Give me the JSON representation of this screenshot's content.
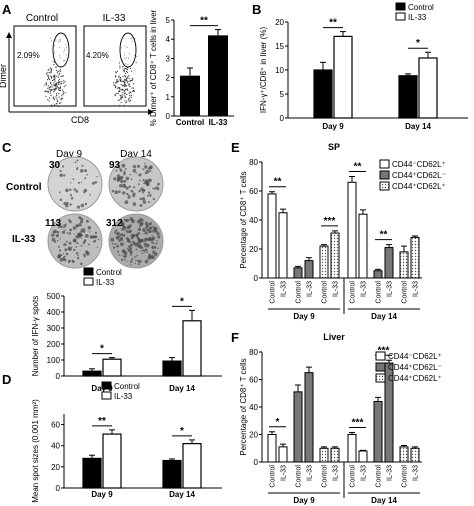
{
  "panel_letters": {
    "a": "A",
    "b": "B",
    "c": "C",
    "d": "D",
    "e": "E",
    "f": "F"
  },
  "panel_a": {
    "flow": {
      "control_title": "Control",
      "il33_title": "IL-33",
      "control_percent": "2.09%",
      "il33_percent": "4.20%",
      "y_axis": "Dimer",
      "x_axis": "CD8"
    }
  },
  "panel_c": {
    "wells": {
      "day9": "Day 9",
      "day14": "Day 14",
      "row_control": "Control",
      "row_il33": "IL-33",
      "counts": {
        "c9": "30",
        "c14": "93",
        "i9": "113",
        "i14": "312"
      }
    }
  },
  "chart_data": [
    {
      "id": "A",
      "type": "bar",
      "categories": [
        "Control",
        "IL-33"
      ],
      "values": [
        2.1,
        4.2
      ],
      "errors": [
        0.4,
        0.3
      ],
      "ylabel": "% Dimer⁺ of CD8⁺ T cells in liver",
      "ylim": [
        0,
        5
      ],
      "yticks": [
        "0",
        "1",
        "2",
        "3",
        "4",
        "5"
      ],
      "significance": [
        "**"
      ],
      "colors": [
        "#000000",
        "#000000"
      ]
    },
    {
      "id": "B",
      "type": "bar",
      "categories": [
        "Day 9",
        "Day 14"
      ],
      "series": [
        {
          "name": "Control",
          "values": [
            10,
            8.8
          ],
          "errors": [
            1.6,
            0.4
          ]
        },
        {
          "name": "IL-33",
          "values": [
            17,
            12.5
          ],
          "errors": [
            1.0,
            1.2
          ]
        }
      ],
      "ylabel": "IFN-γ⁺/CD8⁺ in liver (%)",
      "ylim": [
        0,
        20
      ],
      "yticks": [
        "0",
        "5",
        "10",
        "15",
        "20"
      ],
      "significance": [
        "**",
        "*"
      ],
      "legend": "top-right"
    },
    {
      "id": "C",
      "type": "bar",
      "categories": [
        "Day 9",
        "Day 14"
      ],
      "series": [
        {
          "name": "Control",
          "values": [
            30,
            93
          ],
          "errors": [
            15,
            22
          ]
        },
        {
          "name": "IL-33",
          "values": [
            105,
            345
          ],
          "errors": [
            10,
            65
          ]
        }
      ],
      "ylabel": "Number of IFN-γ spots",
      "ylim": [
        0,
        500
      ],
      "yticks": [
        "0",
        "100",
        "200",
        "300",
        "400",
        "500"
      ],
      "significance": [
        "*",
        "*"
      ],
      "legend": "top-left"
    },
    {
      "id": "D",
      "type": "bar",
      "categories": [
        "Day 9",
        "Day 14"
      ],
      "series": [
        {
          "name": "Control",
          "values": [
            28,
            26
          ],
          "errors": [
            3,
            1.5
          ]
        },
        {
          "name": "IL-33",
          "values": [
            51,
            42
          ],
          "errors": [
            4,
            3.5
          ]
        }
      ],
      "ylabel": "Mean spot sizes (0.001 mm²)",
      "ylim": [
        0,
        70
      ],
      "yticks": [
        "0",
        "20",
        "40",
        "60"
      ],
      "significance": [
        "**",
        "*"
      ],
      "legend": "top"
    },
    {
      "id": "E",
      "type": "bar",
      "title": "SP",
      "groups": [
        "Day 9",
        "Day 14"
      ],
      "subgroups": [
        "Control",
        "IL-33"
      ],
      "series": [
        {
          "name": "CD44⁻CD62L⁺",
          "values": [
            58,
            45,
            66,
            44
          ],
          "errors": [
            1.5,
            2.5,
            4,
            3
          ]
        },
        {
          "name": "CD44⁺CD62L⁻",
          "values": [
            7,
            12,
            5,
            21
          ],
          "errors": [
            1,
            2,
            1,
            2
          ]
        },
        {
          "name": "CD44⁺CD62L⁺",
          "values": [
            22,
            31,
            18,
            28
          ],
          "errors": [
            1,
            1.5,
            4,
            1
          ]
        }
      ],
      "ylabel": "Percentage of CD8⁺ T cells",
      "ylim": [
        0,
        80
      ],
      "yticks": [
        "0",
        "20",
        "40",
        "60",
        "80"
      ],
      "significance": [
        "**",
        "***",
        "**",
        "**"
      ],
      "legend": "top-right"
    },
    {
      "id": "F",
      "type": "bar",
      "title": "Liver",
      "groups": [
        "Day 9",
        "Day 14"
      ],
      "subgroups": [
        "Control",
        "IL-33"
      ],
      "series": [
        {
          "name": "CD44⁻CD62L⁺",
          "values": [
            20,
            11,
            20,
            8
          ],
          "errors": [
            2,
            2,
            1.5,
            0.5
          ]
        },
        {
          "name": "CD44⁺CD62L⁻",
          "values": [
            51,
            65,
            44,
            72
          ],
          "errors": [
            5,
            4,
            3,
            2
          ]
        },
        {
          "name": "CD44⁺CD62L⁺",
          "values": [
            10,
            10,
            11,
            10
          ],
          "errors": [
            1,
            1,
            1,
            1
          ]
        }
      ],
      "ylabel": "Percentage of CD8⁺ T cells",
      "ylim": [
        0,
        80
      ],
      "yticks": [
        "0",
        "20",
        "40",
        "60",
        "80"
      ],
      "significance": [
        "*",
        "***",
        "***"
      ],
      "legend": "top-right"
    }
  ]
}
